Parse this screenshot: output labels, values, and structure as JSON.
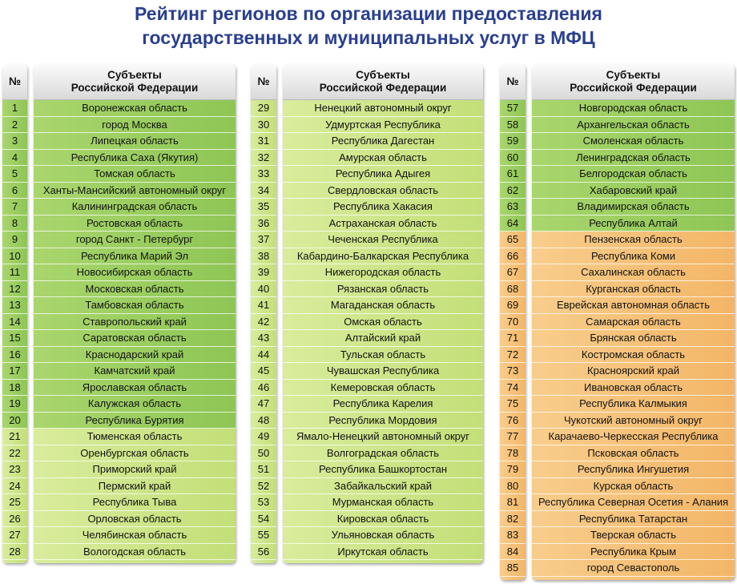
{
  "title_line1": "Рейтинг регионов по организации предоставления",
  "title_line2": "государственных и муниципальных услуг в МФЦ",
  "header_num": "№",
  "header_name_line1": "Субъекты",
  "header_name_line2": "Российской Федерации",
  "colors": {
    "tier_green": "#8ec655",
    "tier_yellow": "#c3df78",
    "tier_orange": "#f3b667",
    "title": "#2a3f8f"
  },
  "regions": [
    "Воронежская область",
    "город Москва",
    "Липецкая область",
    "Республика Саха (Якутия)",
    "Томская область",
    "Ханты-Мансийский автономный округ",
    "Калининградская область",
    "Ростовская область",
    "город Санкт - Петербург",
    "Республика Марий Эл",
    "Новосибирская область",
    "Московская область",
    "Тамбовская область",
    "Ставропольский край",
    "Саратовская область",
    "Краснодарский край",
    "Камчатский край",
    "Ярославская область",
    "Калужская область",
    "Республика Бурятия",
    "Тюменская область",
    "Оренбургская область",
    "Приморский край",
    "Пермский край",
    "Республика Тыва",
    "Орловская область",
    "Челябинская область",
    "Вологодская область",
    "Ненецкий автономный округ",
    "Удмуртская Республика",
    "Республика Дагестан",
    "Амурская область",
    "Республика Адыгея",
    "Свердловская область",
    "Республика Хакасия",
    "Астраханская область",
    "Чеченская Республика",
    "Кабардино-Балкарская Республика",
    "Нижегородская область",
    "Рязанская область",
    "Магаданская область",
    "Омская область",
    "Алтайский край",
    "Тульская область",
    "Чувашская Республика",
    "Кемеровская область",
    "Республика Карелия",
    "Республика Мордовия",
    "Ямало-Ненецкий автономный округ",
    "Волгоградская область",
    "Республика Башкортостан",
    "Забайкальский край",
    "Мурманская область",
    "Кировская область",
    "Ульяновская область",
    "Иркутская область",
    "Новгородская область",
    "Архангельская область",
    "Смоленская область",
    "Ленинградская область",
    "Белгородская область",
    "Хабаровский край",
    "Владимирская область",
    "Республика Алтай",
    "Пензенская область",
    "Республика Коми",
    "Сахалинская область",
    "Курганская область",
    "Еврейская автономная область",
    "Самарская область",
    "Брянская область",
    "Костромская область",
    "Красноярский край",
    "Ивановская область",
    "Республика Калмыкия",
    "Чукотский автономный округ",
    "Карачаево-Черкесская Республика",
    "Псковская область",
    "Республика Ингушетия",
    "Курская область",
    "Республика Северная Осетия - Алания",
    "Республика Татарстан",
    "Тверская область",
    "Республика Крым",
    "город Севастополь"
  ]
}
